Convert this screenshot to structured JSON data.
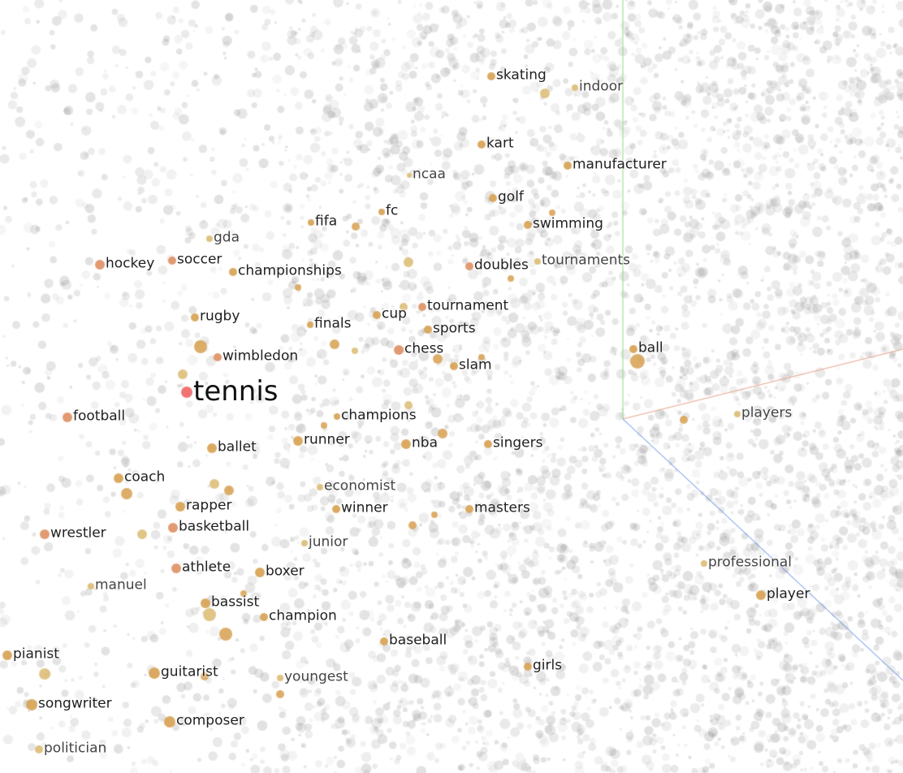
{
  "projection": {
    "axes": {
      "x_color": "#e7a28e",
      "y_color": "#8fd97a",
      "z_color": "#5b86e8"
    },
    "background_point_color": "#9a9a9a",
    "highlight_colors": {
      "query": "#ef6b6b",
      "near": "#e0956a",
      "mid": "#d9a55a",
      "far": "#ddbf7a"
    },
    "query_word": "tennis",
    "neighbors": [
      {
        "word": "tennis",
        "tier": "query"
      },
      {
        "word": "skating",
        "tier": "mid"
      },
      {
        "word": "indoor",
        "tier": "far"
      },
      {
        "word": "kart",
        "tier": "mid"
      },
      {
        "word": "manufacturer",
        "tier": "mid"
      },
      {
        "word": "ncaa",
        "tier": "far"
      },
      {
        "word": "golf",
        "tier": "mid"
      },
      {
        "word": "fc",
        "tier": "mid"
      },
      {
        "word": "fifa",
        "tier": "mid"
      },
      {
        "word": "swimming",
        "tier": "mid"
      },
      {
        "word": "gda",
        "tier": "far"
      },
      {
        "word": "hockey",
        "tier": "near"
      },
      {
        "word": "soccer",
        "tier": "near"
      },
      {
        "word": "championships",
        "tier": "mid"
      },
      {
        "word": "doubles",
        "tier": "near"
      },
      {
        "word": "tournaments",
        "tier": "far"
      },
      {
        "word": "rugby",
        "tier": "mid"
      },
      {
        "word": "cup",
        "tier": "mid"
      },
      {
        "word": "tournament",
        "tier": "near"
      },
      {
        "word": "finals",
        "tier": "mid"
      },
      {
        "word": "sports",
        "tier": "mid"
      },
      {
        "word": "wimbledon",
        "tier": "near"
      },
      {
        "word": "chess",
        "tier": "near"
      },
      {
        "word": "slam",
        "tier": "mid"
      },
      {
        "word": "ball",
        "tier": "mid"
      },
      {
        "word": "football",
        "tier": "near"
      },
      {
        "word": "champions",
        "tier": "mid"
      },
      {
        "word": "players",
        "tier": "far"
      },
      {
        "word": "ballet",
        "tier": "mid"
      },
      {
        "word": "runner",
        "tier": "mid"
      },
      {
        "word": "nba",
        "tier": "mid"
      },
      {
        "word": "singers",
        "tier": "mid"
      },
      {
        "word": "coach",
        "tier": "mid"
      },
      {
        "word": "economist",
        "tier": "far"
      },
      {
        "word": "rapper",
        "tier": "mid"
      },
      {
        "word": "winner",
        "tier": "mid"
      },
      {
        "word": "masters",
        "tier": "mid"
      },
      {
        "word": "basketball",
        "tier": "near"
      },
      {
        "word": "wrestler",
        "tier": "near"
      },
      {
        "word": "junior",
        "tier": "far"
      },
      {
        "word": "professional",
        "tier": "far"
      },
      {
        "word": "athlete",
        "tier": "near"
      },
      {
        "word": "boxer",
        "tier": "mid"
      },
      {
        "word": "manuel",
        "tier": "far"
      },
      {
        "word": "player",
        "tier": "mid"
      },
      {
        "word": "bassist",
        "tier": "mid"
      },
      {
        "word": "champion",
        "tier": "mid"
      },
      {
        "word": "baseball",
        "tier": "mid"
      },
      {
        "word": "pianist",
        "tier": "mid"
      },
      {
        "word": "girls",
        "tier": "mid"
      },
      {
        "word": "guitarist",
        "tier": "mid"
      },
      {
        "word": "youngest",
        "tier": "far"
      },
      {
        "word": "songwriter",
        "tier": "mid"
      },
      {
        "word": "composer",
        "tier": "mid"
      },
      {
        "word": "politician",
        "tier": "far"
      }
    ]
  }
}
